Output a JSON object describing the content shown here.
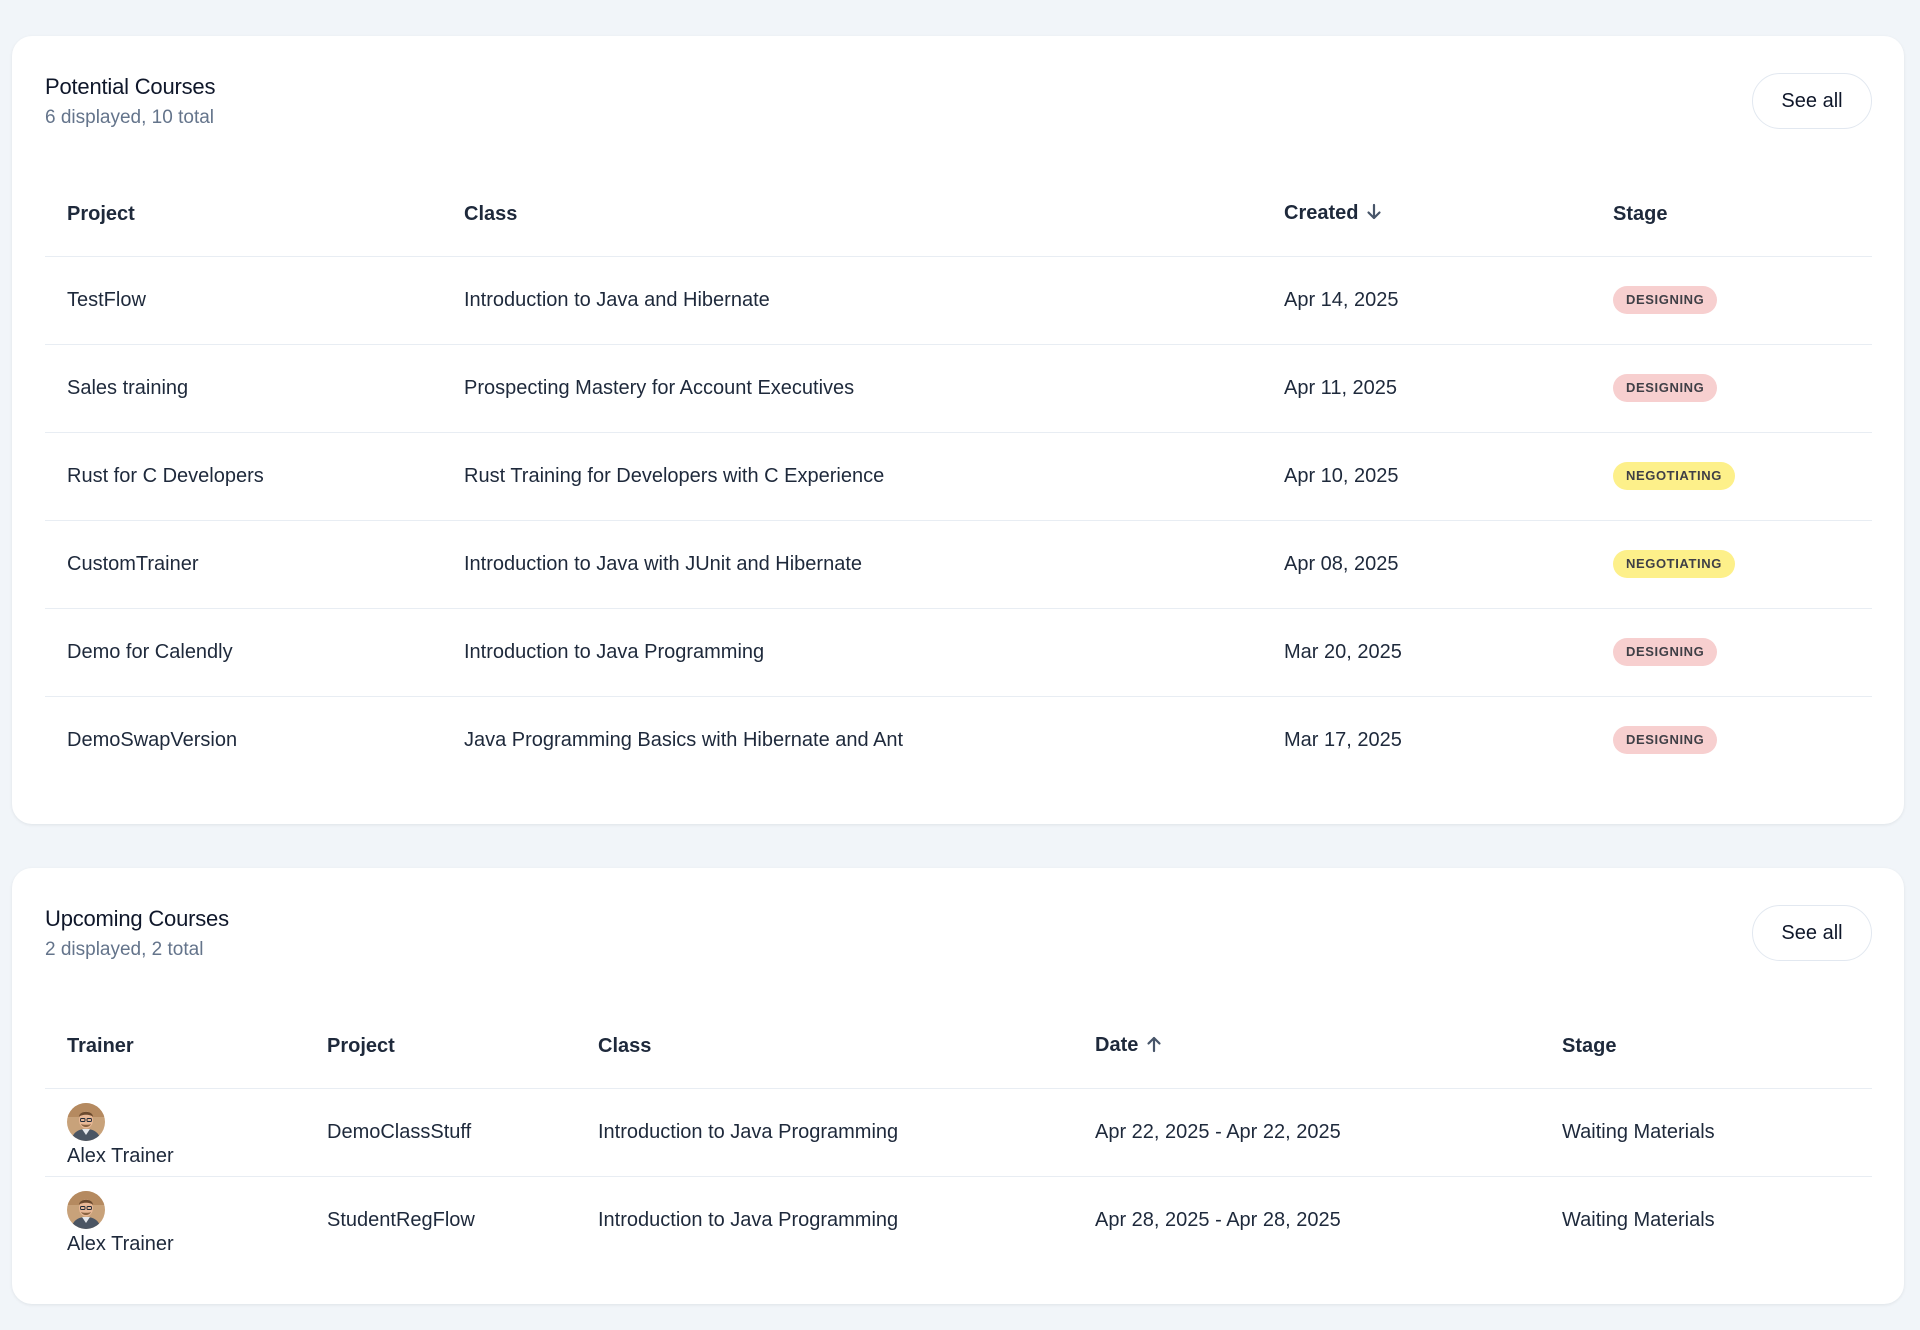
{
  "potential": {
    "title": "Potential Courses",
    "subtitle": "6 displayed, 10 total",
    "see_all_label": "See all",
    "columns": {
      "project": "Project",
      "class": "Class",
      "created": "Created",
      "stage": "Stage"
    },
    "sort": {
      "column": "created",
      "direction": "descending"
    },
    "rows": [
      {
        "project": "TestFlow",
        "class": "Introduction to Java and Hibernate",
        "created": "Apr 14, 2025",
        "stage": "DESIGNING",
        "stage_kind": "designing"
      },
      {
        "project": "Sales training",
        "class": "Prospecting Mastery for Account Executives",
        "created": "Apr 11, 2025",
        "stage": "DESIGNING",
        "stage_kind": "designing"
      },
      {
        "project": "Rust for C Developers",
        "class": "Rust Training for Developers with C Experience",
        "created": "Apr 10, 2025",
        "stage": "NEGOTIATING",
        "stage_kind": "negotiating"
      },
      {
        "project": "CustomTrainer",
        "class": "Introduction to Java with JUnit and Hibernate",
        "created": "Apr 08, 2025",
        "stage": "NEGOTIATING",
        "stage_kind": "negotiating"
      },
      {
        "project": "Demo for Calendly",
        "class": "Introduction to Java Programming",
        "created": "Mar 20, 2025",
        "stage": "DESIGNING",
        "stage_kind": "designing"
      },
      {
        "project": "DemoSwapVersion",
        "class": "Java Programming Basics with Hibernate and Ant",
        "created": "Mar 17, 2025",
        "stage": "DESIGNING",
        "stage_kind": "designing"
      }
    ]
  },
  "upcoming": {
    "title": "Upcoming Courses",
    "subtitle": "2 displayed, 2 total",
    "see_all_label": "See all",
    "columns": {
      "trainer": "Trainer",
      "project": "Project",
      "class": "Class",
      "date": "Date",
      "stage": "Stage"
    },
    "sort": {
      "column": "date",
      "direction": "ascending"
    },
    "rows": [
      {
        "trainer": "Alex Trainer",
        "project": "DemoClassStuff",
        "class": "Introduction to Java Programming",
        "date": "Apr 22, 2025 - Apr 22, 2025",
        "stage": "Waiting Materials"
      },
      {
        "trainer": "Alex Trainer",
        "project": "StudentRegFlow",
        "class": "Introduction to Java Programming",
        "date": "Apr 28, 2025 - Apr 28, 2025",
        "stage": "Waiting Materials"
      }
    ]
  },
  "colors": {
    "page_bg": "#f1f5f9",
    "card_bg": "#ffffff",
    "designing_badge": "#f7cfcf",
    "negotiating_badge": "#fdf08a",
    "muted_text": "#64748b",
    "divider": "#e8edf3"
  },
  "icons": {
    "sort_descending": "arrow-down-icon",
    "sort_ascending": "arrow-up-icon",
    "avatar": "trainer-avatar-photo"
  }
}
